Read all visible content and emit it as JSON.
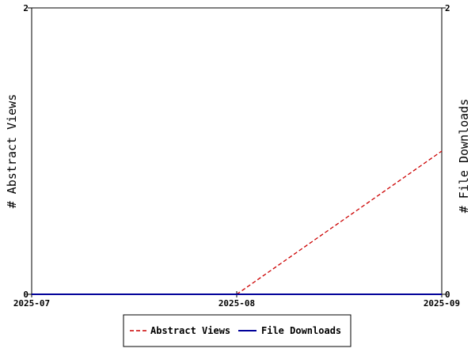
{
  "chart_data": {
    "type": "line",
    "title": "",
    "x": [
      "2025-07",
      "2025-08",
      "2025-09"
    ],
    "xlim": [
      "2025-07",
      "2025-09"
    ],
    "y_left": {
      "label": "# Abstract Views",
      "ylim": [
        0,
        2
      ],
      "ticks": [
        "0",
        "2"
      ]
    },
    "y_right": {
      "label": "# File Downloads",
      "ylim": [
        0,
        2
      ],
      "ticks": [
        "0",
        "2"
      ]
    },
    "series": [
      {
        "name": "Abstract Views",
        "axis": "left",
        "values": [
          null,
          0,
          1
        ],
        "color": "#cc0000",
        "style": "dashed"
      },
      {
        "name": "File Downloads",
        "axis": "right",
        "values": [
          0,
          0,
          0
        ],
        "color": "#000099",
        "style": "solid"
      }
    ],
    "grid": false,
    "legend_position": "bottom"
  }
}
